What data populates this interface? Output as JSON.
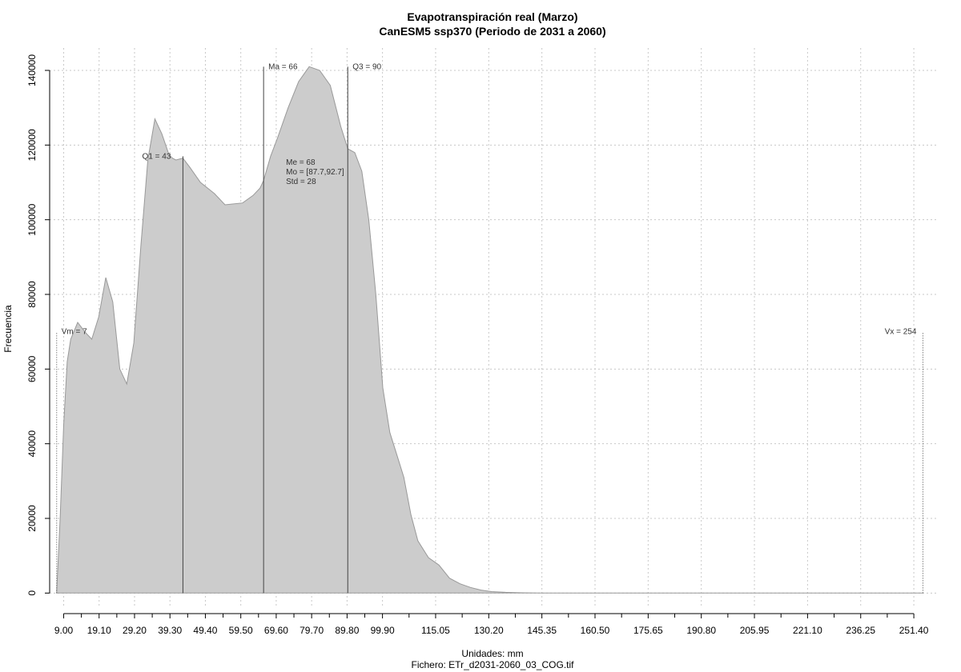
{
  "chart_data": {
    "type": "area",
    "title": "Evapotranspiración real (Marzo)",
    "subtitle": "CanESM5 ssp370 (Periodo de 2031 a 2060)",
    "xlabel": "Unidades: mm",
    "caption": "Fichero: ETr_d2031-2060_03_COG.tif",
    "ylabel": "Frecuencia",
    "xlim": [
      5,
      258
    ],
    "ylim": [
      -4000,
      146000
    ],
    "grid": true,
    "x_ticks": [
      "9.00",
      "19.10",
      "29.20",
      "39.30",
      "49.40",
      "59.50",
      "69.60",
      "79.70",
      "89.80",
      "99.90",
      "115.05",
      "130.20",
      "145.35",
      "160.50",
      "175.65",
      "190.80",
      "205.95",
      "221.10",
      "236.25",
      "251.40"
    ],
    "y_ticks": [
      0,
      20000,
      40000,
      60000,
      80000,
      100000,
      120000,
      140000
    ],
    "series": [
      {
        "x": [
          7,
          8,
          9,
          10,
          11,
          13,
          15,
          17,
          19,
          21,
          23,
          25,
          27,
          29,
          31,
          33,
          35,
          37,
          39,
          40,
          41,
          43,
          45,
          48,
          50,
          52,
          55,
          60,
          63,
          65,
          66,
          68,
          70,
          73,
          76,
          79,
          82,
          85,
          88,
          90,
          92,
          94,
          96,
          98,
          100,
          102,
          104,
          106,
          108,
          110,
          113,
          116,
          119,
          122,
          125,
          128,
          131,
          135,
          140,
          145,
          150,
          160,
          170,
          190,
          220,
          254
        ],
        "y": [
          500,
          20000,
          45000,
          62000,
          68000,
          72500,
          70000,
          68000,
          74000,
          84500,
          78000,
          60000,
          56000,
          67000,
          93000,
          116000,
          127000,
          123000,
          117500,
          116500,
          116000,
          116500,
          114000,
          110000,
          108500,
          107000,
          104000,
          104500,
          106500,
          108500,
          110500,
          117000,
          122000,
          130000,
          137000,
          141000,
          140000,
          136000,
          125000,
          119000,
          118000,
          113000,
          100000,
          80000,
          55000,
          43000,
          37000,
          31000,
          21000,
          14000,
          9500,
          7500,
          4000,
          2500,
          1500,
          800,
          400,
          200,
          80,
          30,
          10,
          5,
          0,
          0,
          0,
          0
        ]
      }
    ],
    "vlines": [
      {
        "label": "Vm = 7",
        "x": 7,
        "y_top": 70000
      },
      {
        "label": "Q1 = 43",
        "x": 43,
        "y_top": 117000
      },
      {
        "label": "Ma = 66",
        "x": 66,
        "y_top": 141000
      },
      {
        "label": "Q3 = 90",
        "x": 90,
        "y_top": 141000
      },
      {
        "label": "Vx = 254",
        "x": 254,
        "y_top": 70000
      }
    ],
    "stats": [
      "Me = 68",
      "Mo = [87.7,92.7]",
      "Std = 28"
    ],
    "fill_color": "#cccccc",
    "line_color": "#999999",
    "grid_color": "#c8c8c8"
  }
}
